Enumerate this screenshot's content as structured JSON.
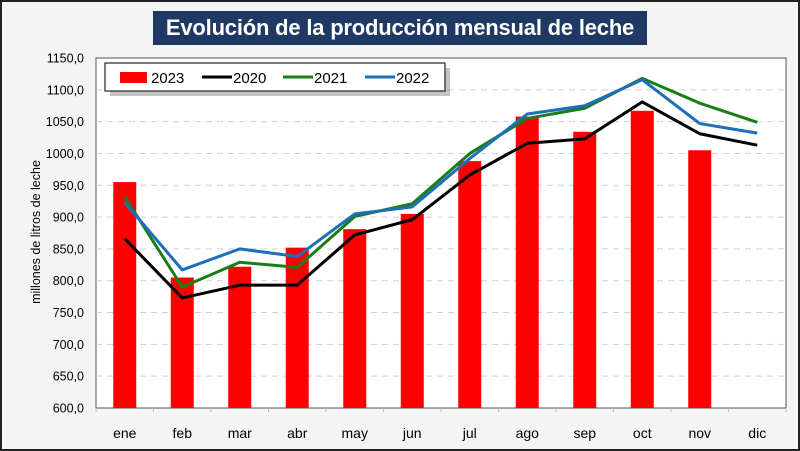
{
  "chart_data": {
    "type": "bar",
    "title": "Evolución de la producción mensual de leche",
    "xlabel": "",
    "ylabel": "millones de litros de leche",
    "ylim": [
      600,
      1150
    ],
    "yticks": [
      "600,0",
      "650,0",
      "700,0",
      "750,0",
      "800,0",
      "850,0",
      "900,0",
      "950,0",
      "1000,0",
      "1050,0",
      "1100,0",
      "1150,0"
    ],
    "ytick_values": [
      600,
      650,
      700,
      750,
      800,
      850,
      900,
      950,
      1000,
      1050,
      1100,
      1150
    ],
    "grid": true,
    "legend_position": "top-left",
    "categories": [
      "ene",
      "feb",
      "mar",
      "abr",
      "may",
      "jun",
      "jul",
      "ago",
      "sep",
      "oct",
      "nov",
      "dic"
    ],
    "bars": {
      "name": "2023",
      "color": "#ff0000",
      "values": [
        955,
        805,
        822,
        852,
        881,
        905,
        988,
        1058,
        1034,
        1067,
        1005,
        null
      ]
    },
    "series": [
      {
        "name": "2020",
        "type": "line",
        "color": "#000000",
        "values": [
          866,
          773,
          793,
          793,
          872,
          896,
          966,
          1016,
          1023,
          1081,
          1031,
          1013
        ]
      },
      {
        "name": "2021",
        "type": "line",
        "color": "#1a7d1a",
        "values": [
          932,
          790,
          829,
          821,
          901,
          921,
          1000,
          1055,
          1071,
          1118,
          1079,
          1049
        ]
      },
      {
        "name": "2022",
        "type": "line",
        "color": "#1f6fb8",
        "values": [
          923,
          817,
          850,
          838,
          905,
          916,
          992,
          1062,
          1075,
          1116,
          1047,
          1032
        ]
      }
    ],
    "legend": [
      "2023",
      "2020",
      "2021",
      "2022"
    ]
  }
}
